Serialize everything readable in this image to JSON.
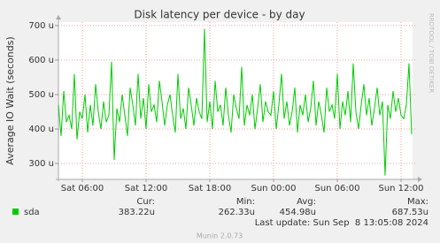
{
  "chart_data": {
    "type": "line",
    "title": "Disk latency per device - by day",
    "y_label": "Average IO Wait (seconds)",
    "watermark": "RRDTOOL / TOBI OETIKER",
    "categories": [
      null,
      null,
      null,
      null,
      null,
      null,
      null,
      null,
      null,
      "Sat 06:00",
      null,
      null,
      null,
      null,
      null,
      null,
      null,
      null,
      null,
      null,
      null,
      null,
      null,
      null,
      null,
      null,
      null,
      null,
      null,
      null,
      null,
      null,
      null,
      "Sat 12:00",
      null,
      null,
      null,
      null,
      null,
      null,
      null,
      null,
      null,
      null,
      null,
      null,
      null,
      null,
      null,
      null,
      null,
      null,
      null,
      null,
      null,
      null,
      null,
      "Sat 18:00",
      null,
      null,
      null,
      null,
      null,
      null,
      null,
      null,
      null,
      null,
      null,
      null,
      null,
      null,
      null,
      null,
      null,
      null,
      null,
      null,
      null,
      null,
      null,
      "Sun 00:00",
      null,
      null,
      null,
      null,
      null,
      null,
      null,
      null,
      null,
      null,
      null,
      null,
      null,
      null,
      null,
      null,
      null,
      null,
      null,
      null,
      null,
      null,
      null,
      "Sun 06:00",
      null,
      null,
      null,
      null,
      null,
      null,
      null,
      null,
      null,
      null,
      null,
      null,
      null,
      null,
      null,
      null,
      null,
      null,
      null,
      null,
      null,
      null,
      null,
      "Sun 12:00",
      null,
      null,
      null,
      null
    ],
    "series": [
      {
        "name": "sda",
        "color": "#00cc00",
        "values": [
          470,
          380,
          510,
          420,
          440,
          400,
          560,
          370,
          450,
          430,
          500,
          390,
          470,
          410,
          530,
          450,
          400,
          480,
          420,
          440,
          595,
          310,
          460,
          420,
          500,
          440,
          380,
          520,
          470,
          410,
          560,
          430,
          490,
          400,
          530,
          450,
          470,
          420,
          540,
          480,
          410,
          470,
          500,
          440,
          390,
          560,
          430,
          460,
          400,
          520,
          470,
          410,
          490,
          450,
          430,
          690,
          420,
          480,
          400,
          540,
          450,
          470,
          410,
          520,
          440,
          390,
          500,
          460,
          430,
          580,
          410,
          470,
          440,
          500,
          400,
          460,
          530,
          420,
          480,
          450,
          440,
          510,
          400,
          470,
          560,
          430,
          480,
          410,
          450,
          520,
          390,
          470,
          440,
          500,
          420,
          460,
          540,
          410,
          480,
          440,
          390,
          520,
          450,
          470,
          430,
          560,
          400,
          480,
          440,
          510,
          420,
          590,
          450,
          400,
          470,
          530,
          440,
          490,
          410,
          460,
          520,
          440,
          480,
          265,
          470,
          430,
          510,
          450,
          490,
          440,
          430,
          470,
          590,
          385
        ]
      }
    ],
    "ylim": [
      254,
      710
    ],
    "yticks": [
      {
        "value": 300,
        "label": "300 u"
      },
      {
        "value": 400,
        "label": "400 u"
      },
      {
        "value": 500,
        "label": "500 u"
      },
      {
        "value": 600,
        "label": "600 u"
      },
      {
        "value": 700,
        "label": "700 u"
      }
    ],
    "grid": true,
    "stats": [
      {
        "label": "Cur:",
        "value": "383.22u"
      },
      {
        "label": "Min:",
        "value": "262.33u"
      },
      {
        "label": "Avg:",
        "value": "454.98u"
      },
      {
        "label": "Max:",
        "value": "687.53u"
      }
    ],
    "last_update": "Last update: Sun Sep  8 13:05:08 2024",
    "footer": "Munin 2.0.73"
  }
}
